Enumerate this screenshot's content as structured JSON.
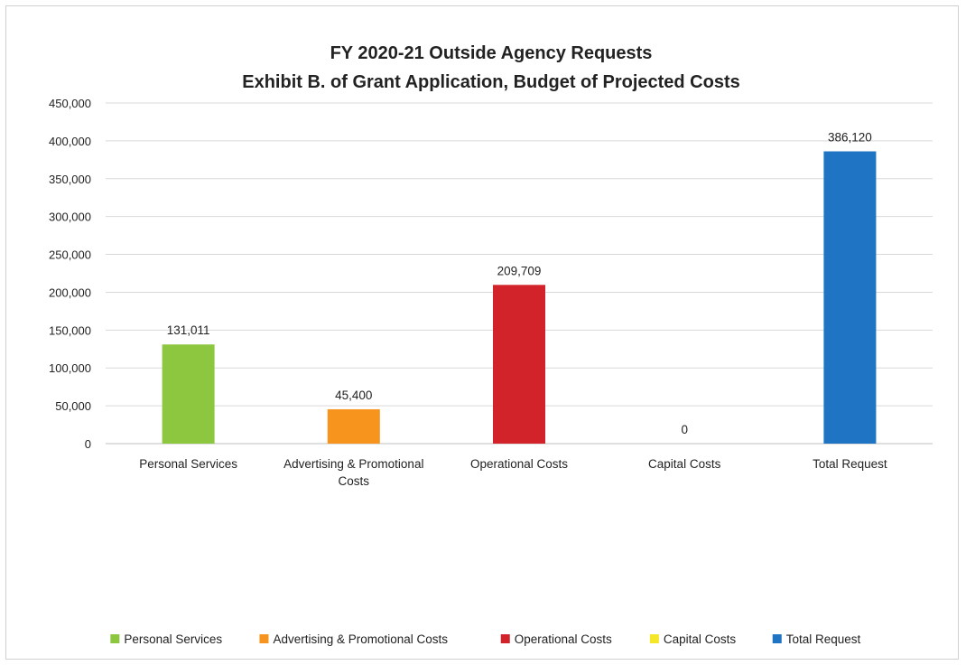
{
  "chart_data": {
    "type": "bar",
    "title": "FY 2020-21 Outside Agency Requests",
    "subtitle": "Exhibit B. of Grant Application, Budget of Projected Costs",
    "categories": [
      "Personal Services",
      "Advertising & Promotional Costs",
      "Operational Costs",
      "Capital Costs",
      "Total Request"
    ],
    "values": [
      131011,
      45400,
      209709,
      0,
      386120
    ],
    "data_labels": [
      "131,011",
      "45,400",
      "209,709",
      "0",
      "386,120"
    ],
    "colors": [
      "#8dc63f",
      "#f7941d",
      "#d2232a",
      "#f5e727",
      "#1f75c4"
    ],
    "ylim": [
      0,
      450000
    ],
    "yticks": [
      0,
      50000,
      100000,
      150000,
      200000,
      250000,
      300000,
      350000,
      400000,
      450000
    ],
    "ytick_labels": [
      "0",
      "50,000",
      "100,000",
      "150,000",
      "200,000",
      "250,000",
      "300,000",
      "350,000",
      "400,000",
      "450,000"
    ],
    "xlabel": "",
    "ylabel": "",
    "grid": true,
    "legend": {
      "position": "bottom",
      "entries": [
        "Personal Services",
        "Advertising & Promotional Costs",
        "Operational Costs",
        "Capital Costs",
        "Total Request"
      ]
    }
  }
}
